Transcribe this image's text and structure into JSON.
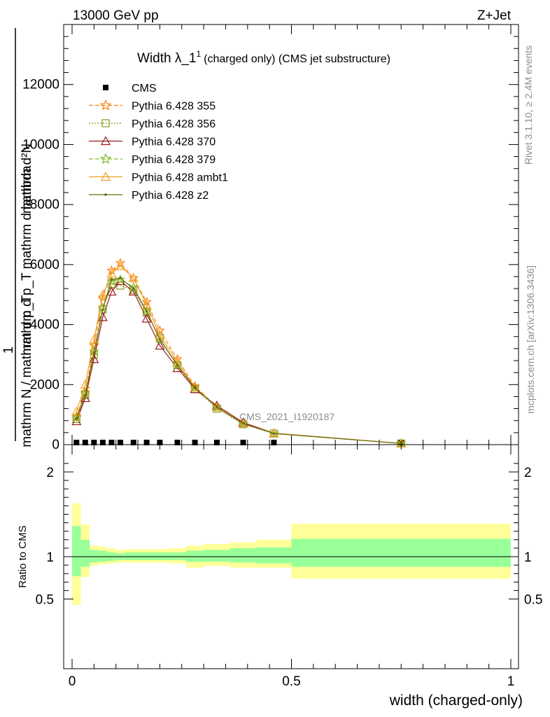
{
  "header": {
    "left": "13000 GeV pp",
    "right": "Z+Jet"
  },
  "side_labels": {
    "rivet": "Rivet 3.1.10, ≥ 2.4M events",
    "mcplots": "mcplots.cern.ch [arXiv:1306.3436]"
  },
  "watermark": "CMS_2021_I1920187",
  "chart_data": [
    {
      "type": "line",
      "title_main": "Width λ_1",
      "title_sup": "1",
      "title_rest": "(charged only) (CMS jet substructure)",
      "ylabel_num": "mathrm d²N",
      "ylabel_num2": "mathrm d p_T mathrm d lambda",
      "ylabel_den": "mathrm N / mathrm d p_T",
      "ylabel_one": "1",
      "xlim": [
        0,
        1
      ],
      "ylim": [
        0,
        14000
      ],
      "yticks": [
        0,
        2000,
        4000,
        6000,
        8000,
        10000,
        12000
      ],
      "ytick_labels": [
        "0",
        "2000",
        "4000",
        "6000",
        "8000",
        "10000",
        "12000"
      ],
      "x": [
        0.01,
        0.03,
        0.05,
        0.07,
        0.09,
        0.11,
        0.14,
        0.17,
        0.2,
        0.24,
        0.28,
        0.33,
        0.39,
        0.46,
        0.75
      ],
      "series": [
        {
          "name": "CMS",
          "color": "#000000",
          "marker": "square",
          "values": [
            0,
            0,
            0,
            0,
            0,
            0,
            0,
            0,
            0,
            0,
            0,
            0,
            0,
            0,
            0
          ]
        },
        {
          "name": "Pythia 6.428 355",
          "color": "#ff7f0e",
          "marker": "star",
          "dash": "6,3",
          "values": [
            950,
            1750,
            3300,
            4900,
            5800,
            6050,
            5550,
            4750,
            3800,
            2850,
            1950,
            1250,
            700,
            380,
            40
          ]
        },
        {
          "name": "Pythia 6.428 356",
          "color": "#8a9a1f",
          "marker": "open-square",
          "dash": "2,2",
          "values": [
            850,
            1650,
            3000,
            4500,
            5350,
            5300,
            5150,
            4400,
            3550,
            2650,
            1850,
            1200,
            680,
            370,
            40
          ]
        },
        {
          "name": "Pythia 6.428 370",
          "color": "#9b1b1b",
          "marker": "open-triangle",
          "dash": "",
          "values": [
            780,
            1550,
            2850,
            4250,
            5100,
            5450,
            5100,
            4200,
            3300,
            2550,
            1850,
            1300,
            740,
            380,
            40
          ]
        },
        {
          "name": "Pythia 6.428 379",
          "color": "#7fbf2a",
          "marker": "star",
          "dash": "6,3",
          "values": [
            900,
            1700,
            3100,
            4550,
            5450,
            5500,
            5250,
            4450,
            3500,
            2650,
            1900,
            1250,
            700,
            370,
            40
          ]
        },
        {
          "name": "Pythia 6.428 ambt1",
          "color": "#f0a020",
          "marker": "open-triangle",
          "dash": "",
          "values": [
            1100,
            2000,
            3500,
            5000,
            5700,
            5950,
            5550,
            4650,
            3650,
            2750,
            1900,
            1250,
            700,
            380,
            40
          ]
        },
        {
          "name": "Pythia 6.428 z2",
          "color": "#6b6b10",
          "marker": "dot",
          "dash": "",
          "values": [
            880,
            1650,
            3050,
            4500,
            5500,
            5550,
            5200,
            4450,
            3500,
            2650,
            1900,
            1250,
            700,
            370,
            40
          ]
        }
      ]
    },
    {
      "type": "area",
      "ylabel": "Ratio to CMS",
      "xlabel": "width (charged-only)",
      "xlim": [
        0,
        1
      ],
      "ylim": [
        0.4,
        2.3
      ],
      "xticks": [
        0,
        0.5,
        1
      ],
      "xtick_labels": [
        "0",
        "0.5",
        "1"
      ],
      "yticks": [
        0.5,
        1,
        2
      ],
      "ytick_labels": [
        "0.5",
        "1",
        "2"
      ],
      "bins": [
        {
          "lo": 0.0,
          "hi": 0.02,
          "inner": [
            0.77,
            1.36
          ],
          "outer": [
            0.43,
            1.63
          ]
        },
        {
          "lo": 0.02,
          "hi": 0.04,
          "inner": [
            0.88,
            1.2
          ],
          "outer": [
            0.76,
            1.38
          ]
        },
        {
          "lo": 0.04,
          "hi": 0.06,
          "inner": [
            0.93,
            1.08
          ],
          "outer": [
            0.89,
            1.13
          ]
        },
        {
          "lo": 0.06,
          "hi": 0.08,
          "inner": [
            0.94,
            1.07
          ],
          "outer": [
            0.91,
            1.12
          ]
        },
        {
          "lo": 0.08,
          "hi": 0.1,
          "inner": [
            0.95,
            1.05
          ],
          "outer": [
            0.92,
            1.1
          ]
        },
        {
          "lo": 0.1,
          "hi": 0.12,
          "inner": [
            0.96,
            1.04
          ],
          "outer": [
            0.93,
            1.08
          ]
        },
        {
          "lo": 0.12,
          "hi": 0.16,
          "inner": [
            0.96,
            1.05
          ],
          "outer": [
            0.93,
            1.09
          ]
        },
        {
          "lo": 0.16,
          "hi": 0.22,
          "inner": [
            0.96,
            1.05
          ],
          "outer": [
            0.93,
            1.09
          ]
        },
        {
          "lo": 0.22,
          "hi": 0.26,
          "inner": [
            0.96,
            1.05
          ],
          "outer": [
            0.92,
            1.1
          ]
        },
        {
          "lo": 0.26,
          "hi": 0.3,
          "inner": [
            0.94,
            1.07
          ],
          "outer": [
            0.87,
            1.13
          ]
        },
        {
          "lo": 0.3,
          "hi": 0.36,
          "inner": [
            0.94,
            1.08
          ],
          "outer": [
            0.89,
            1.15
          ]
        },
        {
          "lo": 0.36,
          "hi": 0.42,
          "inner": [
            0.93,
            1.1
          ],
          "outer": [
            0.87,
            1.17
          ]
        },
        {
          "lo": 0.42,
          "hi": 0.5,
          "inner": [
            0.92,
            1.11
          ],
          "outer": [
            0.87,
            1.2
          ]
        },
        {
          "lo": 0.5,
          "hi": 1.0,
          "inner": [
            0.88,
            1.21
          ],
          "outer": [
            0.74,
            1.39
          ]
        }
      ],
      "colors": {
        "inner": "#99ff99",
        "outer": "#ffff99"
      }
    }
  ]
}
